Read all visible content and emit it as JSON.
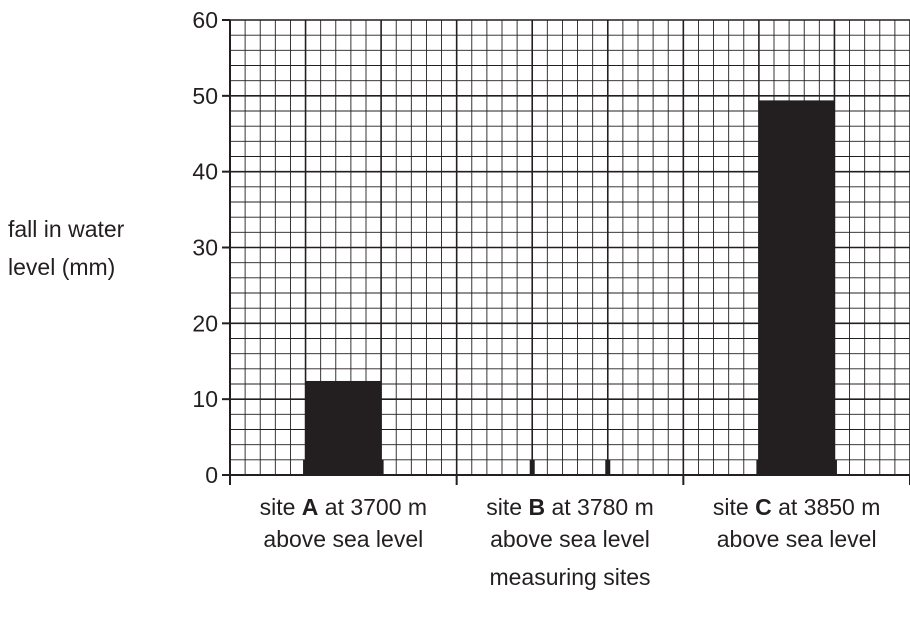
{
  "chart_data": {
    "type": "bar",
    "ylabel_lines": [
      "fall in water",
      "level (mm)"
    ],
    "xlabel": "measuring sites",
    "ylim": [
      0,
      60
    ],
    "yticks": [
      0,
      10,
      20,
      30,
      40,
      50,
      60
    ],
    "grid": true,
    "minor_grid_step": 2,
    "categories": [
      {
        "name": "A",
        "values": [
          0,
          12.4,
          0
        ],
        "line1_pre": "site ",
        "line1_bold": "A",
        "line1_post": " at 3700 m",
        "line2": "above sea level"
      },
      {
        "name": "B",
        "values": [
          0,
          0,
          0
        ],
        "line1_pre": "site ",
        "line1_bold": "B",
        "line1_post": " at 3780 m",
        "line2": "above sea level"
      },
      {
        "name": "C",
        "values": [
          0,
          49.4,
          0
        ],
        "line1_pre": "site ",
        "line1_bold": "C",
        "line1_post": " at 3850 m",
        "line2": "above sea level"
      }
    ],
    "bar_color": "#231f20",
    "grid_color": "#231f20"
  }
}
